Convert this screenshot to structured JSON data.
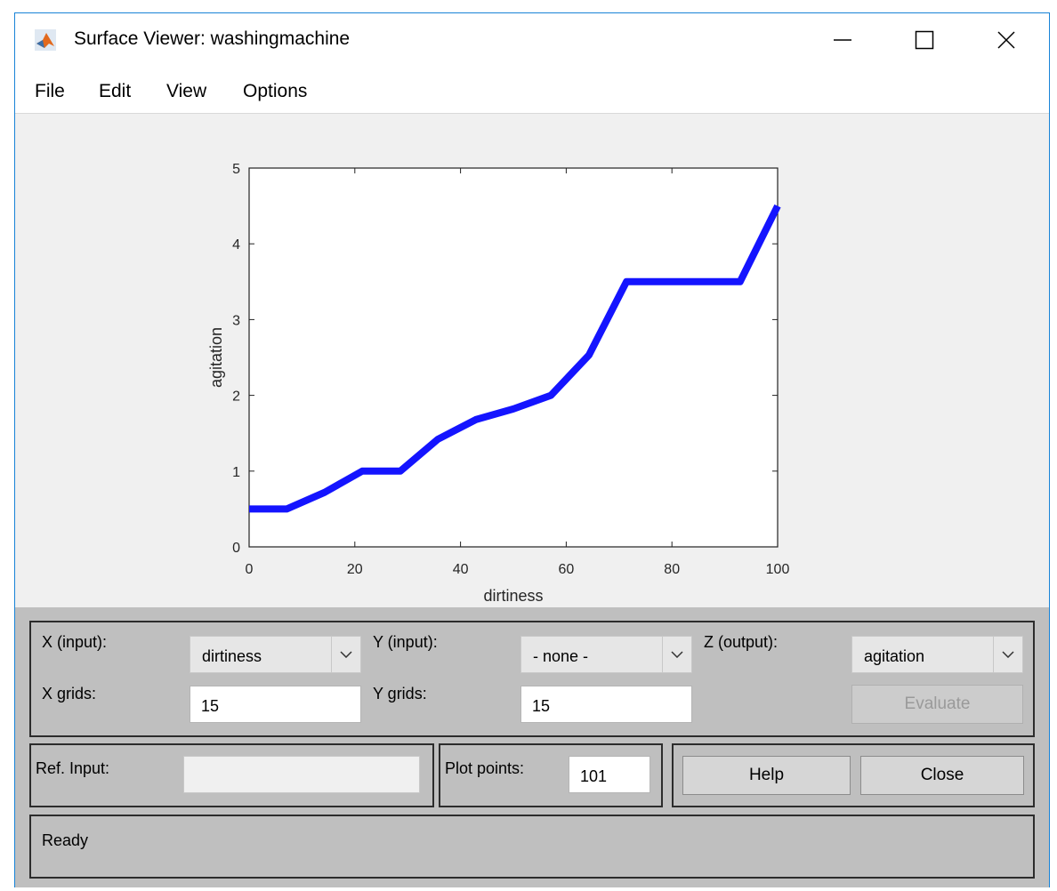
{
  "window": {
    "title": "Surface Viewer: washingmachine",
    "minimize_icon": "minimize-icon",
    "maximize_icon": "maximize-icon",
    "close_icon": "close-icon"
  },
  "menu": [
    "File",
    "Edit",
    "View",
    "Options"
  ],
  "chart_data": {
    "type": "line",
    "xlabel": "dirtiness",
    "ylabel": "agitation",
    "xlim": [
      0,
      100
    ],
    "ylim": [
      0,
      5
    ],
    "xticks": [
      "0",
      "20",
      "40",
      "60",
      "80",
      "100"
    ],
    "yticks": [
      "0",
      "1",
      "2",
      "3",
      "4",
      "5"
    ],
    "series_color": "#1414ff",
    "x": [
      0,
      7.1,
      14.3,
      21.4,
      28.6,
      35.7,
      42.9,
      50,
      57.1,
      64.3,
      71.4,
      78.6,
      85.7,
      92.9,
      100
    ],
    "y": [
      0.5,
      0.5,
      0.72,
      1.0,
      1.0,
      1.42,
      1.68,
      1.82,
      2.0,
      2.53,
      3.5,
      3.5,
      3.5,
      3.5,
      4.5
    ]
  },
  "controls": {
    "x_input_label": "X (input):",
    "x_input_value": "dirtiness",
    "y_input_label": "Y (input):",
    "y_input_value": "- none -",
    "z_output_label": "Z (output):",
    "z_output_value": "agitation",
    "x_grids_label": "X grids:",
    "x_grids_value": "15",
    "y_grids_label": "Y grids:",
    "y_grids_value": "15",
    "evaluate_label": "Evaluate",
    "ref_input_label": "Ref. Input:",
    "ref_input_value": "",
    "plot_points_label": "Plot points:",
    "plot_points_value": "101",
    "help_label": "Help",
    "close_label": "Close",
    "dropdown_icon": "chevron-down-icon"
  },
  "status": {
    "text": "Ready"
  }
}
